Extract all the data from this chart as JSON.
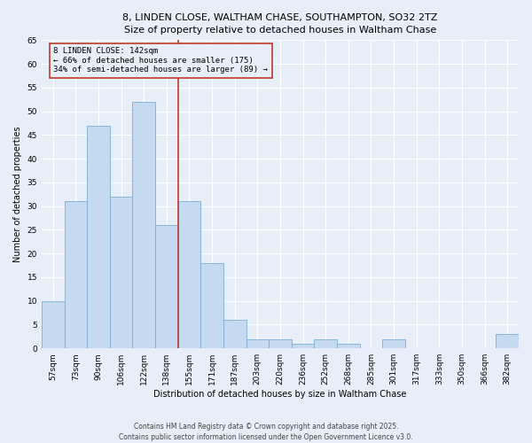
{
  "title_line1": "8, LINDEN CLOSE, WALTHAM CHASE, SOUTHAMPTON, SO32 2TZ",
  "title_line2": "Size of property relative to detached houses in Waltham Chase",
  "xlabel": "Distribution of detached houses by size in Waltham Chase",
  "ylabel": "Number of detached properties",
  "categories": [
    "57sqm",
    "73sqm",
    "90sqm",
    "106sqm",
    "122sqm",
    "138sqm",
    "155sqm",
    "171sqm",
    "187sqm",
    "203sqm",
    "220sqm",
    "236sqm",
    "252sqm",
    "268sqm",
    "285sqm",
    "301sqm",
    "317sqm",
    "333sqm",
    "350sqm",
    "366sqm",
    "382sqm"
  ],
  "values": [
    10,
    31,
    47,
    32,
    52,
    26,
    31,
    18,
    6,
    2,
    2,
    1,
    2,
    1,
    0,
    2,
    0,
    0,
    0,
    0,
    3
  ],
  "bar_color": "#c5d9f0",
  "bar_edge_color": "#7badd4",
  "reference_line_color": "#c0392b",
  "annotation_text": "8 LINDEN CLOSE: 142sqm\n← 66% of detached houses are smaller (175)\n34% of semi-detached houses are larger (89) →",
  "annotation_box_color": "#c0392b",
  "ylim": [
    0,
    65
  ],
  "yticks": [
    0,
    5,
    10,
    15,
    20,
    25,
    30,
    35,
    40,
    45,
    50,
    55,
    60,
    65
  ],
  "background_color": "#e8eef8",
  "grid_color": "#ffffff",
  "footer_line1": "Contains HM Land Registry data © Crown copyright and database right 2025.",
  "footer_line2": "Contains public sector information licensed under the Open Government Licence v3.0.",
  "title1_fontsize": 8.0,
  "title2_fontsize": 7.5,
  "axis_label_fontsize": 7.0,
  "tick_fontsize": 6.5,
  "annotation_fontsize": 6.5,
  "footer_fontsize": 5.5
}
